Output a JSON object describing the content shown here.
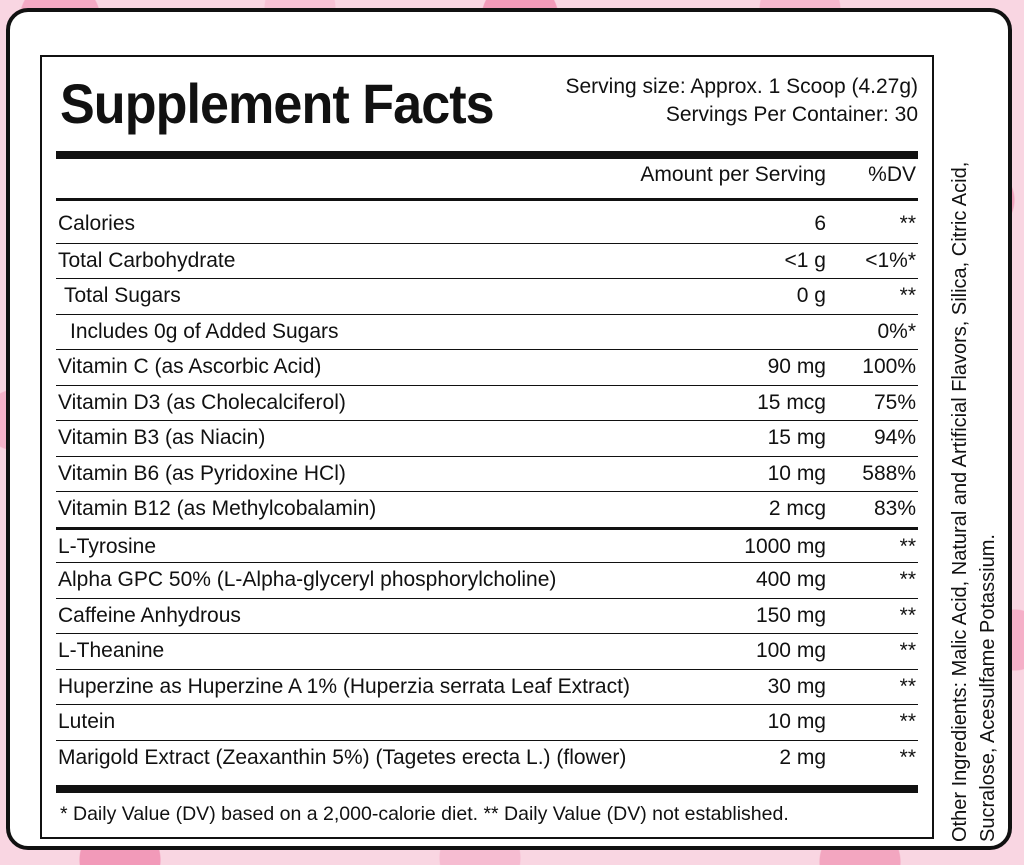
{
  "title": "Supplement Facts",
  "serving_size": "Serving size: Approx. 1 Scoop (4.27g)",
  "servings_per_container": "Servings Per Container: 30",
  "columns": {
    "amount": "Amount per Serving",
    "dv": "%DV"
  },
  "rows": [
    {
      "name": "Calories",
      "amount": "6",
      "dv": "**"
    },
    {
      "name": "Total Carbohydrate",
      "amount": "<1 g",
      "dv": "<1%*"
    },
    {
      "name": "Total Sugars",
      "amount": "0 g",
      "dv": "**"
    },
    {
      "name": "Includes 0g of Added Sugars",
      "amount": "",
      "dv": "0%*"
    },
    {
      "name": "Vitamin C (as Ascorbic Acid)",
      "amount": "90 mg",
      "dv": "100%"
    },
    {
      "name": "Vitamin D3 (as Cholecalciferol)",
      "amount": "15 mcg",
      "dv": "75%"
    },
    {
      "name": "Vitamin B3 (as Niacin)",
      "amount": "15 mg",
      "dv": "94%"
    },
    {
      "name": "Vitamin B6 (as Pyridoxine HCl)",
      "amount": "10 mg",
      "dv": "588%"
    },
    {
      "name": "Vitamin B12 (as Methylcobalamin)",
      "amount": "2 mcg",
      "dv": "83%"
    },
    {
      "name": "L-Tyrosine",
      "amount": "1000 mg",
      "dv": "**"
    },
    {
      "name": "Alpha GPC 50% (L-Alpha-glyceryl phosphorylcholine)",
      "amount": "400 mg",
      "dv": "**"
    },
    {
      "name": "Caffeine Anhydrous",
      "amount": "150 mg",
      "dv": "**"
    },
    {
      "name": "L-Theanine",
      "amount": "100 mg",
      "dv": "**"
    },
    {
      "name": "Huperzine as Huperzine A 1% (Huperzia serrata Leaf Extract)",
      "amount": "30 mg",
      "dv": "**"
    },
    {
      "name": "Lutein",
      "amount": "10 mg",
      "dv": "**"
    },
    {
      "name": "Marigold Extract (Zeaxanthin 5%) (Tagetes erecta L.) (flower)",
      "amount": "2 mg",
      "dv": "**"
    }
  ],
  "footnote": "*  Daily Value (DV) based on a 2,000-calorie diet.  ** Daily Value (DV) not established.",
  "other_ingredients": "Other Ingredients: Malic Acid, Natural and Artificial Flavors, Silica, Citric Acid, Sucralose, Acesulfame Potassium."
}
